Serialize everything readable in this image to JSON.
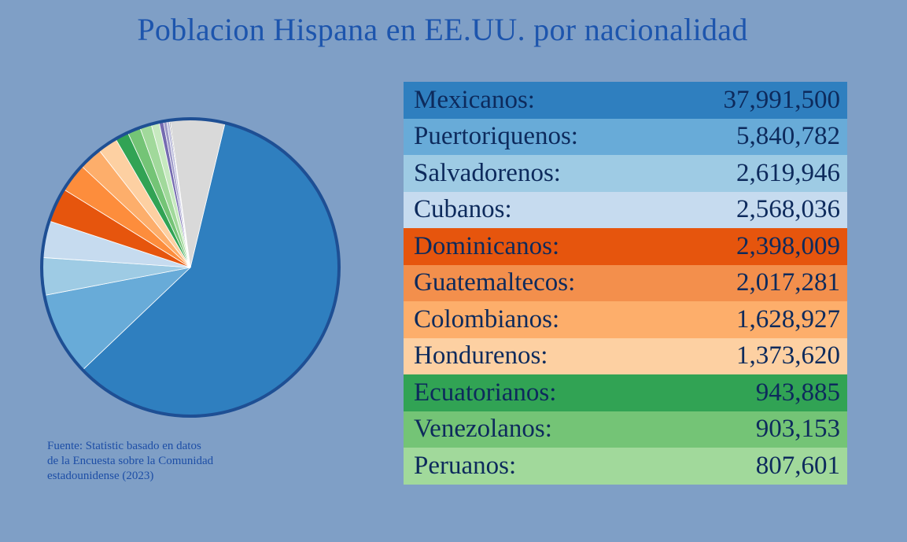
{
  "title": "Poblacion Hispana en EE.UU. por nacionalidad",
  "source": {
    "line1": "Fuente: Statistic basado en datos",
    "line2": "de la Encuesta sobre la Comunidad",
    "line3": "estadounidense (2023)"
  },
  "table": [
    {
      "label": "Mexicanos:",
      "value": "37,991,500",
      "bg": "#2f7fbf"
    },
    {
      "label": "Puertoriquenos:",
      "value": "5,840,782",
      "bg": "#68abd8"
    },
    {
      "label": "Salvadorenos:",
      "value": "2,619,946",
      "bg": "#9ecbe4"
    },
    {
      "label": "Cubanos:",
      "value": "2,568,036",
      "bg": "#c6dbef"
    },
    {
      "label": "Dominicanos:",
      "value": "2,398,009",
      "bg": "#e6550d"
    },
    {
      "label": "Guatemaltecos:",
      "value": "2,017,281",
      "bg": "#f38f4c"
    },
    {
      "label": "Colombianos:",
      "value": "1,628,927",
      "bg": "#fdae6b"
    },
    {
      "label": "Hondurenos:",
      "value": "1,373,620",
      "bg": "#fdd0a2"
    },
    {
      "label": "Ecuatorianos:",
      "value": "943,885",
      "bg": "#31a354"
    },
    {
      "label": "Venezolanos:",
      "value": "903,153",
      "bg": "#74c476"
    },
    {
      "label": "Peruanos:",
      "value": "807,601",
      "bg": "#a1d99b"
    }
  ],
  "chart_data": {
    "type": "pie",
    "title": "Poblacion Hispana en EE.UU. por nacionalidad",
    "categories": [
      "Mexicanos",
      "Puertoriquenos",
      "Salvadorenos",
      "Cubanos",
      "Dominicanos",
      "Guatemaltecos",
      "Colombianos",
      "Hondurenos",
      "Ecuatorianos",
      "Venezolanos",
      "Peruanos",
      "",
      "",
      "",
      "",
      "",
      ""
    ],
    "values": [
      37991500,
      5840782,
      2619946,
      2568036,
      2398009,
      2017281,
      1628927,
      1373620,
      943885,
      903153,
      807601,
      560000,
      300000,
      230000,
      180000,
      70000,
      3800000
    ],
    "colors": [
      "#2f7fbf",
      "#68abd8",
      "#9ecbe4",
      "#c6dbef",
      "#e6550d",
      "#fd8d3c",
      "#fdae6b",
      "#fdd0a2",
      "#31a354",
      "#74c476",
      "#a1d99b",
      "#c7e9c0",
      "#756bb1",
      "#9e9ac8",
      "#bcbddc",
      "#636363",
      "#d9d9d9"
    ],
    "start_angle_deg": -76.5,
    "direction": "clockwise",
    "outline_color": "#1e4f94"
  }
}
